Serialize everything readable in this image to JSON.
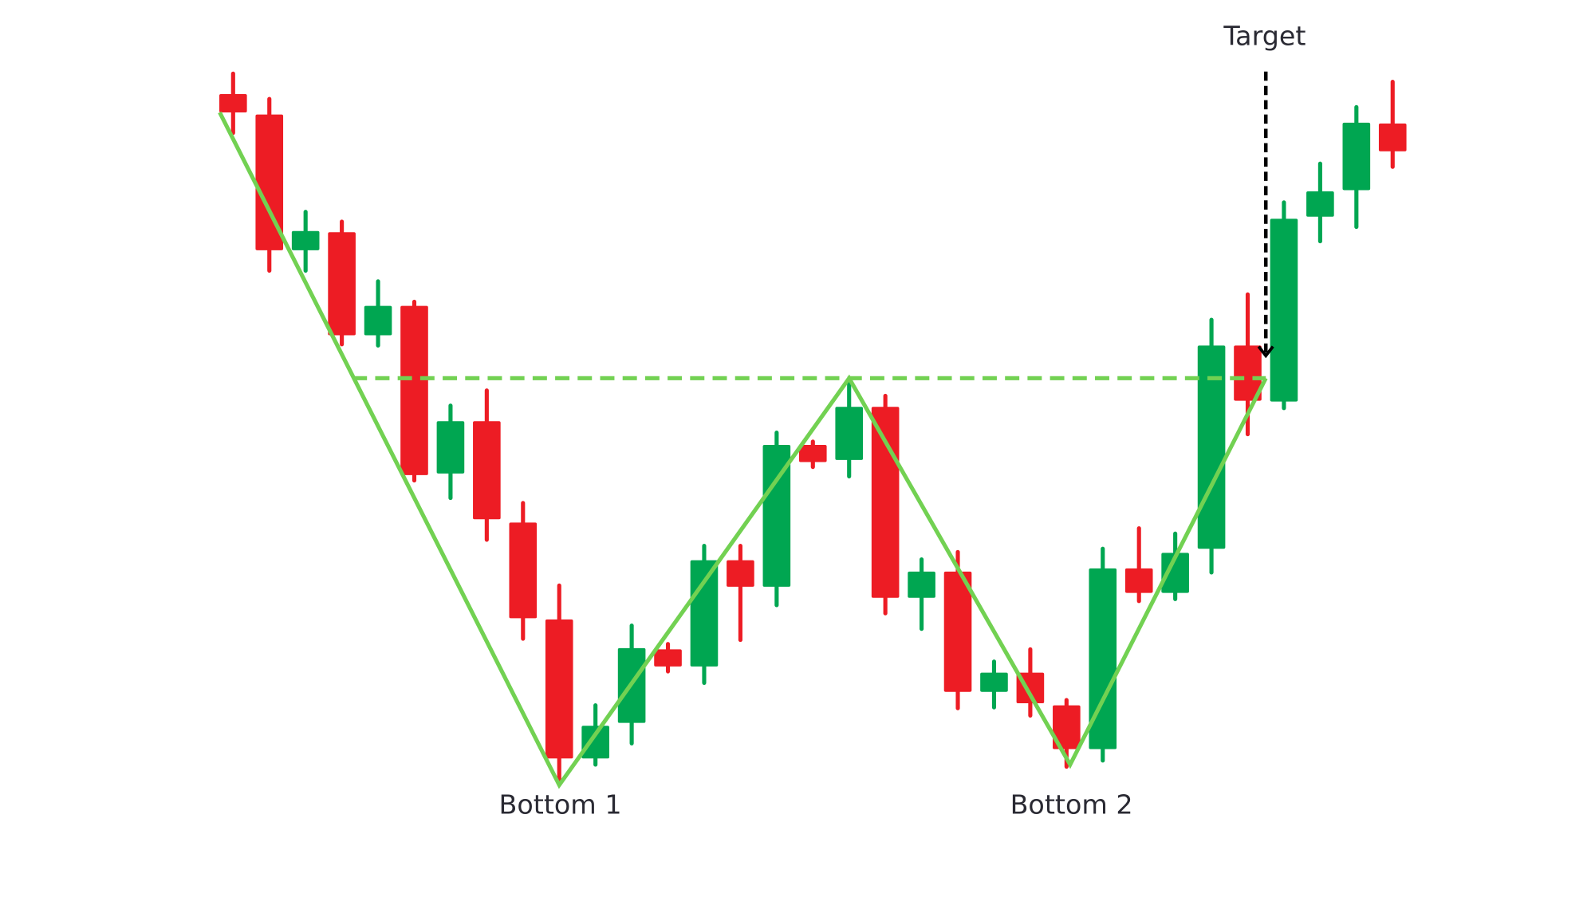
{
  "chart_data": {
    "type": "candlestick",
    "title": "",
    "xlabel": "",
    "ylabel": "",
    "grid": false,
    "colors": {
      "up": "#00a651",
      "down": "#ed1c24",
      "pattern_line": "#72d152",
      "target_arrow": "#000000"
    },
    "candles": [
      {
        "o": 98.5,
        "h": 101,
        "l": 93.75,
        "c": 96.25
      },
      {
        "o": 96,
        "h": 97.9,
        "l": 76.9,
        "c": 79.4
      },
      {
        "o": 79.4,
        "h": 84.1,
        "l": 76.9,
        "c": 81.75
      },
      {
        "o": 81.6,
        "h": 82.9,
        "l": 67.9,
        "c": 69
      },
      {
        "o": 69,
        "h": 75.6,
        "l": 67.75,
        "c": 72.6
      },
      {
        "o": 72.6,
        "h": 73.1,
        "l": 51.25,
        "c": 51.9
      },
      {
        "o": 52.1,
        "h": 60.4,
        "l": 49.1,
        "c": 58.5
      },
      {
        "o": 58.5,
        "h": 62.25,
        "l": 44,
        "c": 46.5
      },
      {
        "o": 46.1,
        "h": 48.5,
        "l": 31.9,
        "c": 34.4
      },
      {
        "o": 34.25,
        "h": 38.4,
        "l": 14.4,
        "c": 17.25
      },
      {
        "o": 17.25,
        "h": 23.75,
        "l": 16.5,
        "c": 21.25
      },
      {
        "o": 21.6,
        "h": 33.5,
        "l": 19.1,
        "c": 30.75
      },
      {
        "o": 30.6,
        "h": 31.25,
        "l": 27.9,
        "c": 28.5
      },
      {
        "o": 28.5,
        "h": 43.25,
        "l": 26.5,
        "c": 41.5
      },
      {
        "o": 41.5,
        "h": 43.25,
        "l": 31.75,
        "c": 38.25
      },
      {
        "o": 38.25,
        "h": 57.1,
        "l": 36,
        "c": 55.6
      },
      {
        "o": 55.6,
        "h": 56,
        "l": 52.9,
        "c": 53.5
      },
      {
        "o": 53.75,
        "h": 63.1,
        "l": 51.75,
        "c": 60.25
      },
      {
        "o": 60.25,
        "h": 61.6,
        "l": 35,
        "c": 36.9
      },
      {
        "o": 36.9,
        "h": 41.6,
        "l": 33.1,
        "c": 40.1
      },
      {
        "o": 40.1,
        "h": 42.5,
        "l": 23.4,
        "c": 25.4
      },
      {
        "o": 25.4,
        "h": 29.1,
        "l": 23.5,
        "c": 27.75
      },
      {
        "o": 27.75,
        "h": 30.6,
        "l": 22.5,
        "c": 24
      },
      {
        "o": 23.75,
        "h": 24.4,
        "l": 16.25,
        "c": 18.4
      },
      {
        "o": 18.4,
        "h": 42.9,
        "l": 17,
        "c": 40.5
      },
      {
        "o": 40.5,
        "h": 45.4,
        "l": 36.5,
        "c": 37.5
      },
      {
        "o": 37.5,
        "h": 44.75,
        "l": 36.75,
        "c": 42.4
      },
      {
        "o": 42.9,
        "h": 70.9,
        "l": 40,
        "c": 67.75
      },
      {
        "o": 67.75,
        "h": 74,
        "l": 56.9,
        "c": 61
      },
      {
        "o": 60.9,
        "h": 85.25,
        "l": 60.1,
        "c": 83.25
      },
      {
        "o": 83.5,
        "h": 90,
        "l": 80.5,
        "c": 86.6
      },
      {
        "o": 86.75,
        "h": 96.9,
        "l": 82.25,
        "c": 95
      },
      {
        "o": 94.9,
        "h": 100,
        "l": 89.6,
        "c": 91.5
      }
    ],
    "pattern_path": [
      {
        "i": 0.63,
        "p": 96.25
      },
      {
        "i": 10,
        "p": 14
      },
      {
        "i": 18,
        "p": 63.75
      },
      {
        "i": 24.1,
        "p": 16.5
      },
      {
        "i": 29.5,
        "p": 63.75
      }
    ],
    "neckline": {
      "price": 63.75,
      "from_i": 4.3,
      "to_i": 29.5
    },
    "target_arrow": {
      "i": 29.5,
      "from_price": 101.25,
      "to_price": 66.5
    },
    "annotations": [
      {
        "key": "bottom1",
        "text": "Bottom 1",
        "i": 10
      },
      {
        "key": "bottom2",
        "text": "Bottom 2",
        "i": 24.1
      },
      {
        "key": "target",
        "text": "Target",
        "i": 29.5
      }
    ]
  },
  "labels": {
    "bottom1": "Bottom 1",
    "bottom2": "Bottom 2",
    "target": "Target"
  }
}
